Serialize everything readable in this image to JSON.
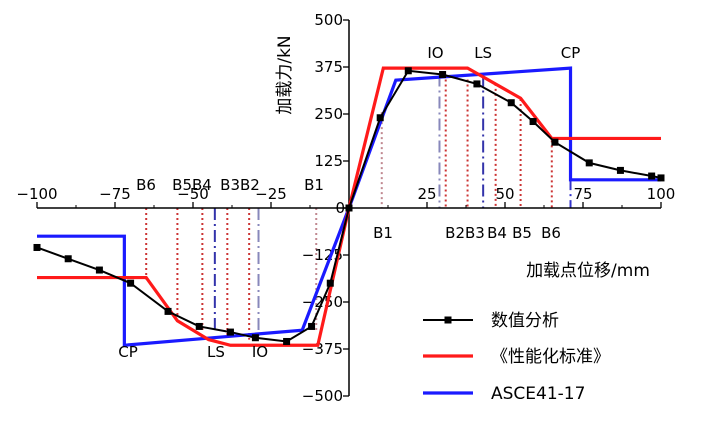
{
  "chart_data": {
    "type": "line",
    "xlabel": "加载点位移/mm",
    "ylabel": "加载力/kN",
    "xlim": [
      -100,
      100
    ],
    "ylim": [
      -500,
      500
    ],
    "xticks": [
      -100,
      -75,
      -50,
      -25,
      0,
      25,
      50,
      75,
      100
    ],
    "xtick_labels": [
      "−100",
      "−75",
      "−50",
      "−25",
      "0",
      "25",
      "50",
      "75",
      "100"
    ],
    "yticks": [
      -500,
      -375,
      -250,
      -125,
      0,
      125,
      250,
      375,
      500
    ],
    "ytick_labels": [
      "−500",
      "−375",
      "−250",
      "−125",
      "0",
      "125",
      "250",
      "375",
      "500"
    ],
    "legend_position": "bottom-right",
    "series": [
      {
        "name": "数值分析",
        "color": "#000000",
        "marker": "square",
        "x": [
          -100,
          -90,
          -80,
          -70,
          -58,
          -48,
          -38,
          -30,
          -20,
          -12,
          -6,
          0,
          10,
          19,
          30,
          41,
          52,
          59,
          66,
          77,
          87,
          97,
          100
        ],
        "y": [
          -105,
          -135,
          -165,
          -200,
          -275,
          -315,
          -330,
          -345,
          -355,
          -315,
          -200,
          0,
          240,
          365,
          355,
          330,
          280,
          230,
          175,
          120,
          100,
          85,
          80
        ]
      },
      {
        "name": "《性能化标准》",
        "color": "#ff1a1a",
        "x": [
          -100,
          -65,
          -55,
          -45,
          -38,
          -10,
          0,
          11,
          38,
          55,
          65,
          100
        ],
        "y": [
          -185,
          -185,
          -300,
          -350,
          -365,
          -365,
          0,
          372,
          372,
          292,
          185,
          185
        ]
      },
      {
        "name": "ASCE41-17",
        "color": "#1a1aff",
        "x": [
          -100,
          -72,
          -72,
          -15,
          0,
          15,
          71,
          71,
          100
        ],
        "y": [
          -75,
          -75,
          -365,
          -325,
          0,
          340,
          372,
          75,
          75
        ]
      }
    ],
    "annotations": {
      "top_labels": [
        {
          "text": "IO",
          "x": 29
        },
        {
          "text": "LS",
          "x": 43
        },
        {
          "text": "CP",
          "x": 71
        }
      ],
      "right_bottom_labels": [
        "B1",
        "B2B3",
        "B4",
        "B5",
        "B6"
      ],
      "left_top_labels": [
        "B6",
        "B5B4",
        "B3B2",
        "B1"
      ],
      "left_bottom_labels": [
        {
          "text": "CP",
          "x": -72
        },
        {
          "text": "LS",
          "x": -43
        },
        {
          "text": "IO",
          "x": -29
        }
      ]
    }
  }
}
